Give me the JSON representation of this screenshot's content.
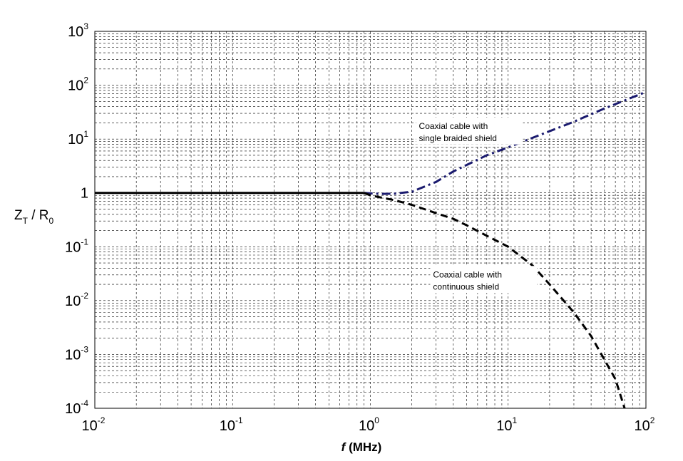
{
  "chart_data": {
    "type": "line",
    "x_scale": "log",
    "y_scale": "log",
    "xlim": [
      0.01,
      100
    ],
    "ylim": [
      0.0001,
      1000
    ],
    "grid": true,
    "xlabel": {
      "italic": "f",
      "rest": " (MHz)"
    },
    "ylabel": {
      "main1": "Z",
      "sub1": "T",
      "main2": " / R",
      "sub2": "0"
    },
    "x_ticks": [
      {
        "value": 0.01,
        "base": "10",
        "exp": "-2"
      },
      {
        "value": 0.1,
        "base": "10",
        "exp": "-1"
      },
      {
        "value": 1,
        "base": "10",
        "exp": "0"
      },
      {
        "value": 10,
        "base": "10",
        "exp": "1"
      },
      {
        "value": 100,
        "base": "10",
        "exp": "2"
      }
    ],
    "y_ticks": [
      {
        "value": 0.0001,
        "base": "10",
        "exp": "-4"
      },
      {
        "value": 0.001,
        "base": "10",
        "exp": "-3"
      },
      {
        "value": 0.01,
        "base": "10",
        "exp": "-2"
      },
      {
        "value": 0.1,
        "base": "10",
        "exp": "-1"
      },
      {
        "value": 1,
        "base": "1",
        "exp": ""
      },
      {
        "value": 10,
        "base": "10",
        "exp": "1"
      },
      {
        "value": 100,
        "base": "10",
        "exp": "2"
      },
      {
        "value": 1000,
        "base": "10",
        "exp": "3"
      }
    ],
    "series": [
      {
        "style": "solid",
        "color": "#000000",
        "x": [
          0.01,
          0.1,
          0.5,
          0.8,
          0.9
        ],
        "y": [
          1,
          1,
          1,
          1,
          1
        ]
      },
      {
        "style": "dash-dot",
        "color": "#1a1a6e",
        "x": [
          0.9,
          1,
          1.2,
          1.5,
          2,
          3,
          4,
          5,
          7,
          10,
          15,
          20,
          30,
          50,
          70,
          100
        ],
        "y": [
          1.0,
          0.98,
          0.96,
          0.97,
          1.05,
          1.6,
          2.5,
          3.3,
          5.0,
          7.0,
          10.5,
          14,
          21,
          37,
          52,
          75
        ]
      },
      {
        "style": "dashed",
        "color": "#000000",
        "x": [
          0.9,
          1,
          1.5,
          2,
          3,
          4,
          5,
          7,
          10,
          15,
          20,
          30,
          40,
          50,
          60,
          70
        ],
        "y": [
          1.0,
          0.9,
          0.73,
          0.6,
          0.42,
          0.33,
          0.25,
          0.16,
          0.1,
          0.045,
          0.02,
          0.006,
          0.0022,
          0.0008,
          0.00035,
          0.0001
        ]
      }
    ],
    "annotations": [
      {
        "lines": [
          "Coaxial cable with",
          "single braided shield"
        ],
        "x": 2.25,
        "y": 15.5
      },
      {
        "lines": [
          "Coaxial cable with",
          "continuous shield"
        ],
        "x": 2.85,
        "y": 0.027
      }
    ]
  }
}
